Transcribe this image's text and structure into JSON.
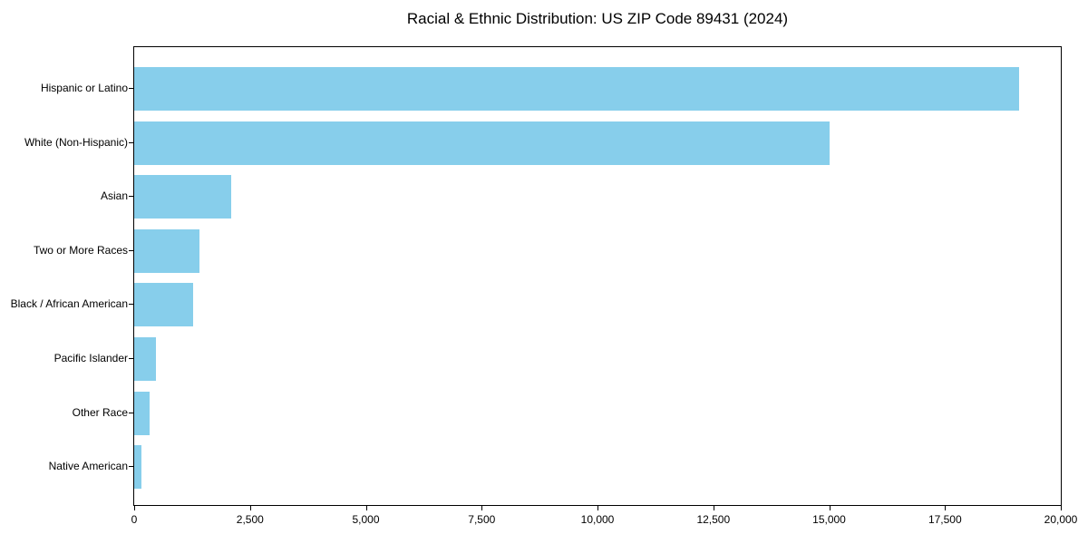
{
  "chart_data": {
    "type": "bar",
    "orientation": "horizontal",
    "title": "Racial & Ethnic Distribution: US ZIP Code 89431 (2024)",
    "categories": [
      "Hispanic or Latino",
      "White (Non-Hispanic)",
      "Asian",
      "Two or More Races",
      "Black / African American",
      "Pacific Islander",
      "Other Race",
      "Native American"
    ],
    "values": [
      19100,
      15000,
      2100,
      1400,
      1270,
      470,
      340,
      160
    ],
    "xlabel": "",
    "ylabel": "",
    "xlim": [
      0,
      20000
    ],
    "x_ticks": [
      {
        "value": 0,
        "label": "0"
      },
      {
        "value": 2500,
        "label": "2,500"
      },
      {
        "value": 5000,
        "label": "5,000"
      },
      {
        "value": 7500,
        "label": "7,500"
      },
      {
        "value": 10000,
        "label": "10,000"
      },
      {
        "value": 12500,
        "label": "12,500"
      },
      {
        "value": 15000,
        "label": "15,000"
      },
      {
        "value": 17500,
        "label": "17,500"
      },
      {
        "value": 20000,
        "label": "20,000"
      }
    ],
    "bar_color": "#87CEEB",
    "grid": false,
    "legend": "none",
    "value_labels": false
  }
}
